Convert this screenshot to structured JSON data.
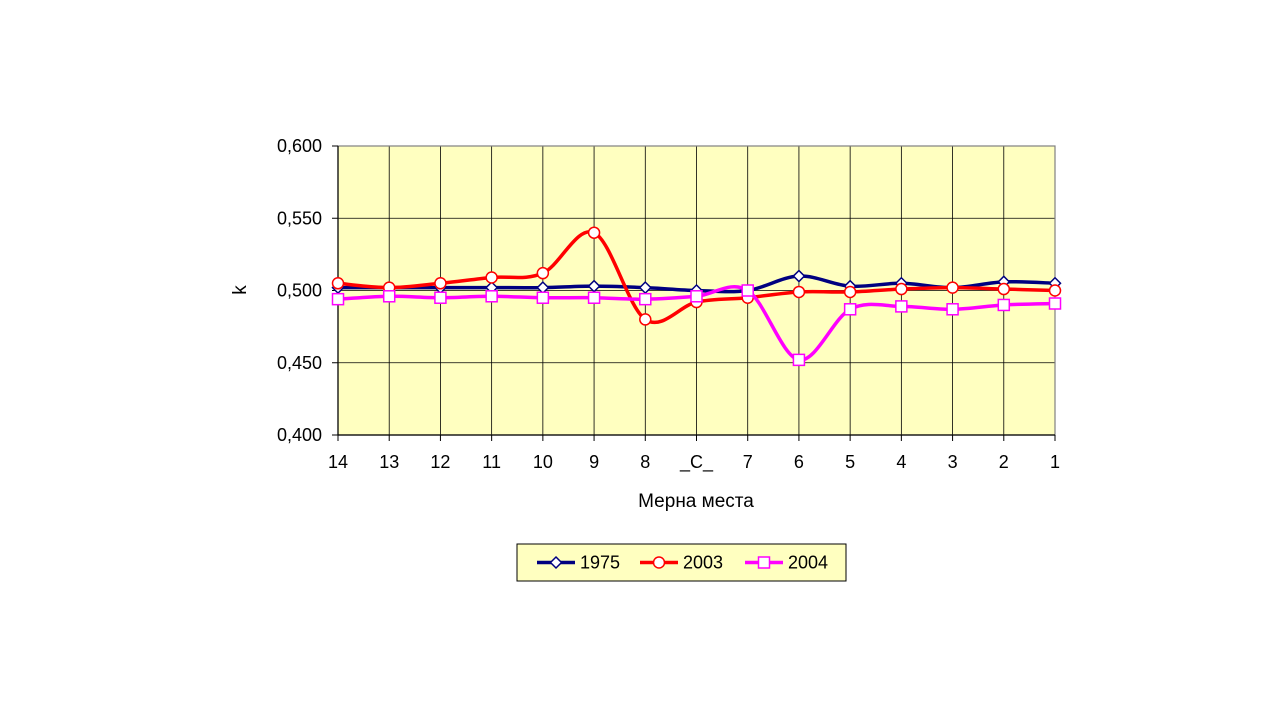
{
  "chart_data": {
    "type": "line",
    "xlabel": "Мерна места",
    "ylabel": "k",
    "categories": [
      "14",
      "13",
      "12",
      "11",
      "10",
      "9",
      "8",
      "_C_",
      "7",
      "6",
      "5",
      "4",
      "3",
      "2",
      "1"
    ],
    "ylim": [
      0.4,
      0.6
    ],
    "yticks": [
      "0,400",
      "0,450",
      "0,500",
      "0,550",
      "0,600"
    ],
    "grid": true,
    "plot_background": "#ffffc0",
    "legend_position": "bottom",
    "series": [
      {
        "name": "1975",
        "color": "#000080",
        "marker": "diamond",
        "values": [
          0.502,
          0.502,
          0.502,
          0.502,
          0.502,
          0.503,
          0.502,
          0.5,
          0.5,
          0.51,
          0.503,
          0.505,
          0.502,
          0.506,
          0.505
        ]
      },
      {
        "name": "2003",
        "color": "#ff0000",
        "marker": "circle",
        "values": [
          0.505,
          0.502,
          0.505,
          0.509,
          0.512,
          0.54,
          0.48,
          0.492,
          0.495,
          0.499,
          0.499,
          0.501,
          0.502,
          0.501,
          0.5
        ]
      },
      {
        "name": "2004",
        "color": "#ff00ff",
        "marker": "square",
        "values": [
          0.494,
          0.496,
          0.495,
          0.496,
          0.495,
          0.495,
          0.494,
          0.496,
          0.5,
          0.452,
          0.487,
          0.489,
          0.487,
          0.49,
          0.491
        ]
      }
    ]
  }
}
